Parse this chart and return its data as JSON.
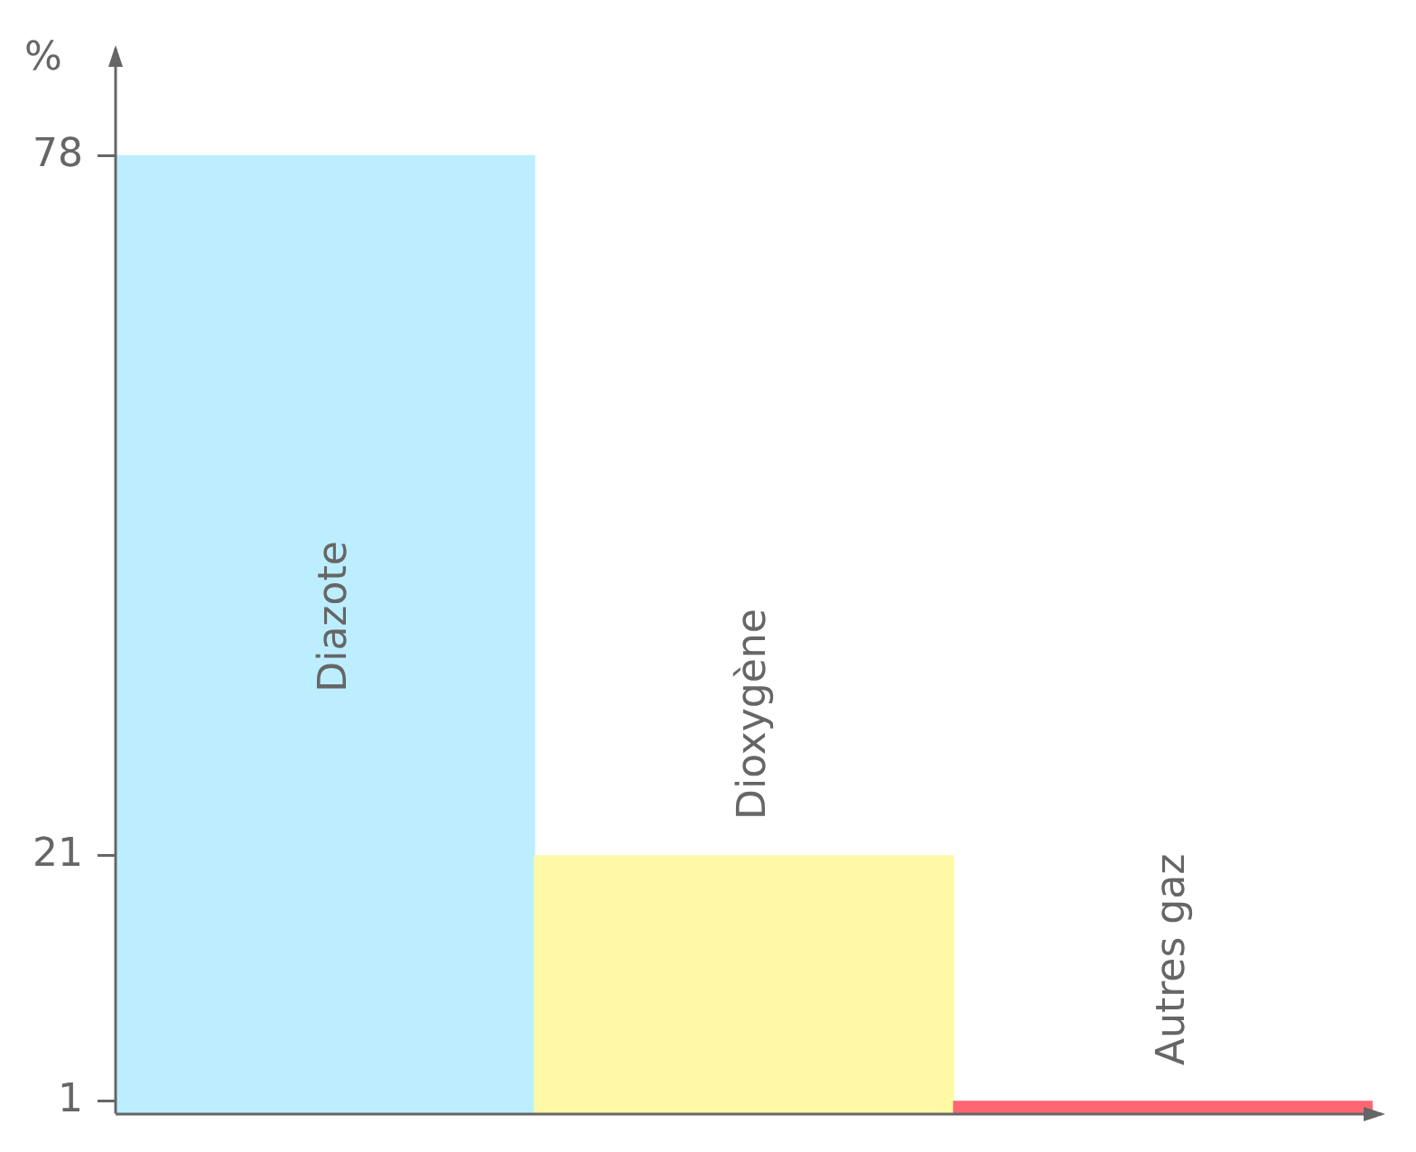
{
  "chart_data": {
    "type": "bar",
    "ylabel": "%",
    "categories": [
      "Diazote",
      "Dioxygène",
      "Autres gaz"
    ],
    "values": [
      78,
      21,
      1
    ],
    "colors": [
      "#bdeeff",
      "#fff9a6",
      "#ff6673"
    ],
    "ylim": [
      0,
      87
    ],
    "yticks": [
      1,
      21,
      78
    ],
    "grid": false,
    "legend": false
  }
}
